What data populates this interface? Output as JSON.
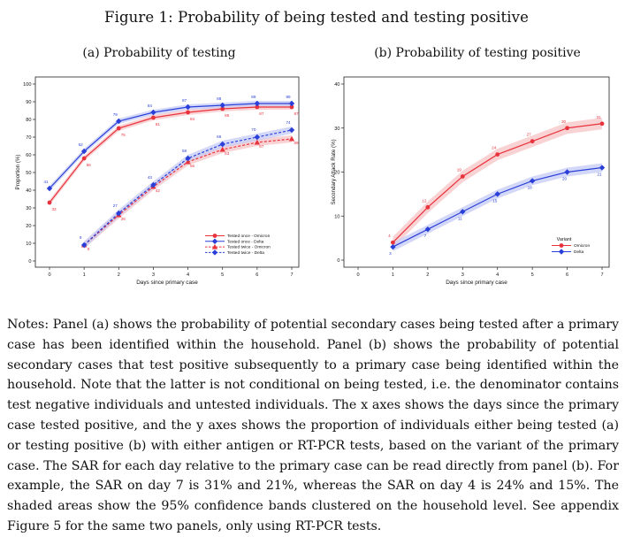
{
  "figure_title": "Figure 1: Probability of being tested and testing positive",
  "notes": "Notes: Panel (a) shows the probability of potential secondary cases being tested after a primary case has been identified within the household. Panel (b) shows the probability of potential secondary cases that test positive subsequently to a primary case being identified within the household. Note that the latter is not conditional on being tested, i.e. the denominator contains test negative individuals and untested individuals. The x axes shows the days since the primary case tested positive, and the y axes shows the proportion of individuals either being tested (a) or testing positive (b) with either antigen or RT-PCR tests, based on the variant of the primary case. The SAR for each day relative to the primary case can be read directly from panel (b). For example, the SAR on day 7 is 31% and 21%, whereas the SAR on day 4 is 24% and 15%. The shaded areas show the 95% confidence bands clustered on the household level. See appendix Figure 5 for the same two panels, only using RT-PCR tests.",
  "colors": {
    "omicron": "#e8323c",
    "delta": "#2a3fd8",
    "omicron_band": "#f7c3c6",
    "delta_band": "#c6cbf5"
  },
  "chart_data": [
    {
      "id": "a",
      "type": "line",
      "title": "(a) Probability of testing",
      "xlabel": "Days since primary case",
      "ylabel": "Proportion (%)",
      "xlim": [
        0,
        7
      ],
      "ylim": [
        0,
        100
      ],
      "xticks": [
        0,
        1,
        2,
        3,
        4,
        5,
        6,
        7
      ],
      "yticks": [
        0,
        10,
        20,
        30,
        40,
        50,
        60,
        70,
        80,
        90,
        100
      ],
      "grid": false,
      "legend_position": "bottom-right",
      "series": [
        {
          "name": "Tested once - Omicron",
          "variant": "omicron",
          "style": "solid",
          "marker": "circle",
          "x": [
            0,
            1,
            2,
            3,
            4,
            5,
            6,
            7
          ],
          "y": [
            33,
            58,
            75,
            81,
            84,
            86,
            87,
            87
          ],
          "labels": [
            "33",
            "58",
            "75",
            "81",
            "84",
            "86",
            "87",
            "87"
          ],
          "ci": 1.5
        },
        {
          "name": "Tested once - Delta",
          "variant": "delta",
          "style": "solid",
          "marker": "diamond",
          "x": [
            0,
            1,
            2,
            3,
            4,
            5,
            6,
            7
          ],
          "y": [
            41,
            62,
            79,
            84,
            87,
            88,
            89,
            89
          ],
          "labels": [
            "41",
            "62",
            "79",
            "84",
            "87",
            "88",
            "89",
            "89"
          ],
          "ci": 1.5
        },
        {
          "name": "Tested twice - Omicron",
          "variant": "omicron",
          "style": "dashed",
          "marker": "triangle",
          "x": [
            1,
            2,
            3,
            4,
            5,
            6,
            7
          ],
          "y": [
            9,
            26,
            42,
            56,
            63,
            67,
            69
          ],
          "labels": [
            "9",
            "26",
            "42",
            "56",
            "63",
            "67",
            "69"
          ],
          "ci": 2
        },
        {
          "name": "Tested twice - Delta",
          "variant": "delta",
          "style": "dashed",
          "marker": "diamond",
          "x": [
            1,
            2,
            3,
            4,
            5,
            6,
            7
          ],
          "y": [
            9,
            27,
            43,
            58,
            66,
            70,
            74
          ],
          "labels": [
            "9",
            "27",
            "43",
            "58",
            "66",
            "70",
            "74"
          ],
          "ci": 2
        }
      ]
    },
    {
      "id": "b",
      "type": "line",
      "title": "(b) Probability of testing positive",
      "xlabel": "Days since primary case",
      "ylabel": "Secondary Attack Rate (%)",
      "xlim": [
        0,
        7
      ],
      "ylim": [
        0,
        40
      ],
      "xticks": [
        0,
        1,
        2,
        3,
        4,
        5,
        6,
        7
      ],
      "yticks": [
        0,
        10,
        20,
        30,
        40
      ],
      "grid": false,
      "legend_title": "Variant",
      "legend_position": "bottom-right",
      "series": [
        {
          "name": "Omicron",
          "variant": "omicron",
          "style": "solid",
          "marker": "circle",
          "x": [
            1,
            2,
            3,
            4,
            5,
            6,
            7
          ],
          "y": [
            4,
            12,
            19,
            24,
            27,
            30,
            31
          ],
          "labels": [
            "4",
            "12",
            "19",
            "24",
            "27",
            "30",
            "31"
          ],
          "ci": 1.3
        },
        {
          "name": "Delta",
          "variant": "delta",
          "style": "solid",
          "marker": "diamond",
          "x": [
            1,
            2,
            3,
            4,
            5,
            6,
            7
          ],
          "y": [
            3,
            7,
            11,
            15,
            18,
            20,
            21
          ],
          "labels": [
            "3",
            "7",
            "11",
            "15",
            "18",
            "20",
            "21"
          ],
          "ci": 1.0
        }
      ]
    }
  ]
}
